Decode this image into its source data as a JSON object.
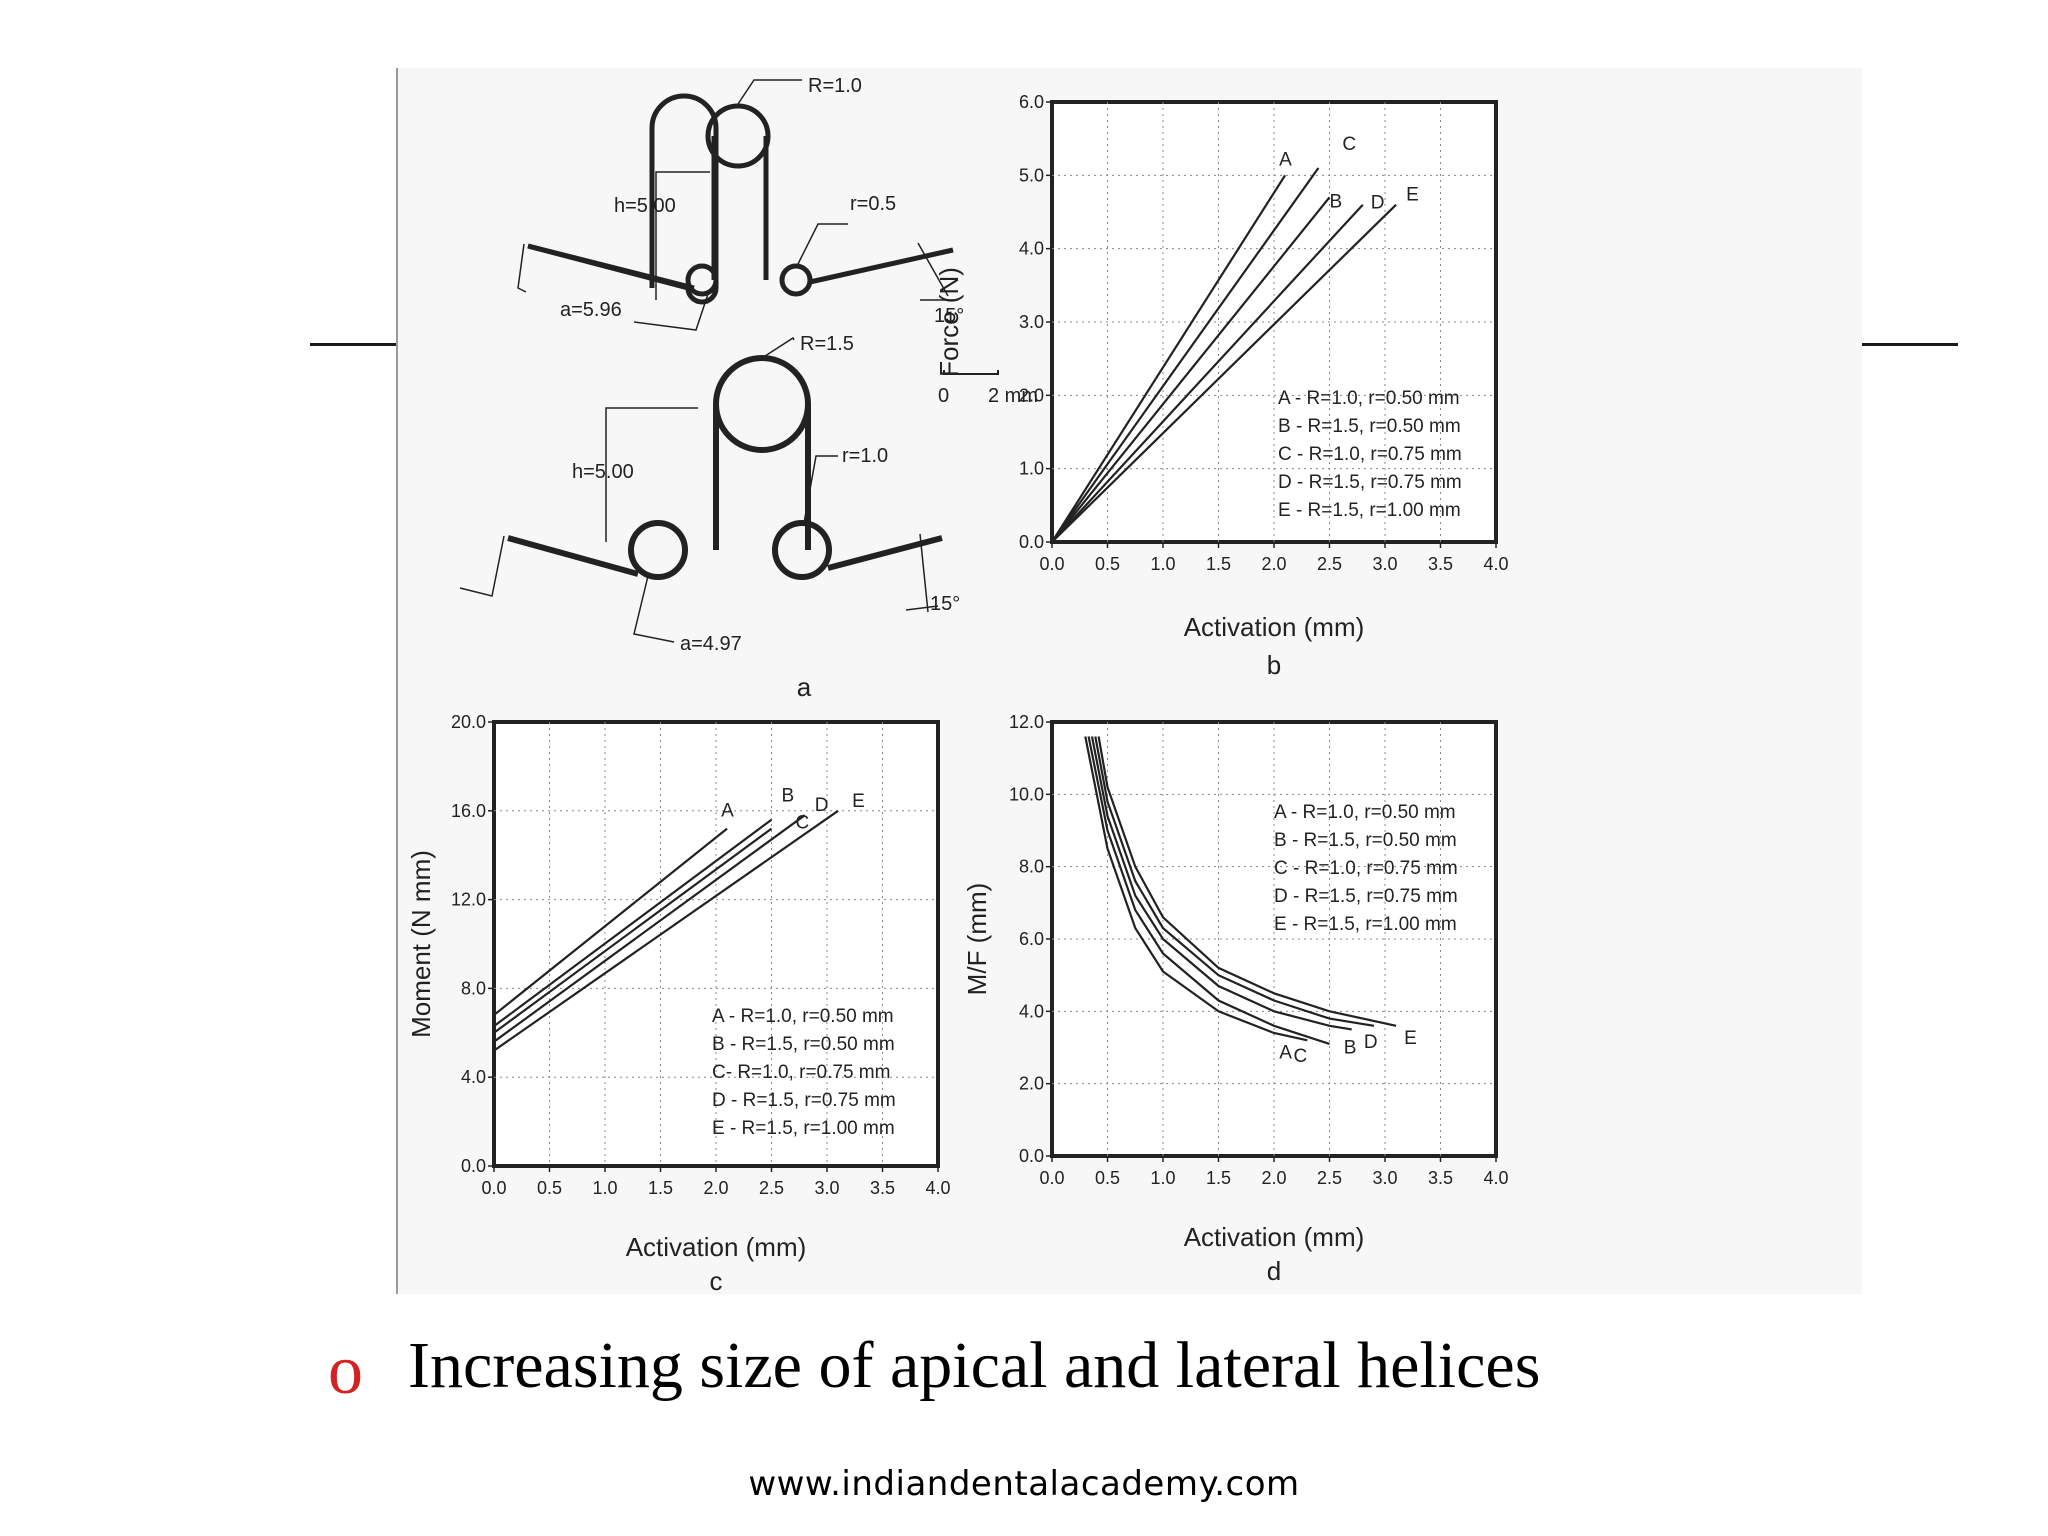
{
  "slide": {
    "caption": "Increasing size of apical and lateral helices",
    "bullet": "o",
    "footer": "www.indiandentalacademy.com"
  },
  "panel_a": {
    "label": "a",
    "top_loop": {
      "R": "R=1.0",
      "r": "r=0.5",
      "h": "h=5.00",
      "a": "a=5.96",
      "angle": "15°"
    },
    "bottom_loop": {
      "R": "R=1.5",
      "r": "r=1.0",
      "h": "h=5.00",
      "a": "a=4.97",
      "angle": "15°"
    },
    "scale_bar": {
      "start": "0",
      "end": "2 mm"
    }
  },
  "chart_data": [
    {
      "panel": "b",
      "type": "line",
      "xlabel": "Activation (mm)",
      "ylabel": "Force (N)",
      "xlim": [
        0,
        4
      ],
      "ylim": [
        0,
        6
      ],
      "xticks": [
        "0.0",
        "0.5",
        "1.0",
        "1.5",
        "2.0",
        "2.5",
        "3.0",
        "3.5",
        "4.0"
      ],
      "yticks": [
        "0.0",
        "1.0",
        "2.0",
        "3.0",
        "4.0",
        "5.0",
        "6.0"
      ],
      "grid": true,
      "legend": [
        "A - R=1.0, r=0.50 mm",
        "B - R=1.5, r=0.50 mm",
        "C - R=1.0, r=0.75 mm",
        "D - R=1.5, r=0.75 mm",
        "E - R=1.5, r=1.00 mm"
      ],
      "legend_position": "bottom-right",
      "series": [
        {
          "name": "A",
          "x": [
            0,
            2.1
          ],
          "y": [
            0,
            5.0
          ]
        },
        {
          "name": "C",
          "x": [
            0,
            2.4
          ],
          "y": [
            0,
            5.1
          ]
        },
        {
          "name": "B",
          "x": [
            0,
            2.5
          ],
          "y": [
            0,
            4.7
          ]
        },
        {
          "name": "D",
          "x": [
            0,
            2.8
          ],
          "y": [
            0,
            4.6
          ]
        },
        {
          "name": "E",
          "x": [
            0,
            3.1
          ],
          "y": [
            0,
            4.6
          ]
        }
      ]
    },
    {
      "panel": "c",
      "type": "line",
      "xlabel": "Activation (mm)",
      "ylabel": "Moment (N mm)",
      "xlim": [
        0,
        4
      ],
      "ylim": [
        0,
        20
      ],
      "xticks": [
        "0.0",
        "0.5",
        "1.0",
        "1.5",
        "2.0",
        "2.5",
        "3.0",
        "3.5",
        "4.0"
      ],
      "yticks": [
        "0.0",
        "4.0",
        "8.0",
        "12.0",
        "16.0",
        "20.0"
      ],
      "grid": true,
      "legend": [
        "A - R=1.0, r=0.50 mm",
        "B - R=1.5, r=0.50 mm",
        "C- R=1.0, r=0.75 mm",
        "D - R=1.5, r=0.75 mm",
        "E - R=1.5, r=1.00 mm"
      ],
      "legend_position": "bottom-right",
      "series": [
        {
          "name": "A",
          "x": [
            0,
            2.1
          ],
          "y": [
            6.8,
            15.2
          ]
        },
        {
          "name": "B",
          "x": [
            0,
            2.5
          ],
          "y": [
            6.3,
            15.6
          ]
        },
        {
          "name": "C",
          "x": [
            0,
            2.5
          ],
          "y": [
            6.0,
            15.2
          ]
        },
        {
          "name": "D",
          "x": [
            0,
            2.8
          ],
          "y": [
            5.6,
            15.8
          ]
        },
        {
          "name": "E",
          "x": [
            0,
            3.1
          ],
          "y": [
            5.2,
            16.0
          ]
        }
      ]
    },
    {
      "panel": "d",
      "type": "line",
      "xlabel": "Activation (mm)",
      "ylabel": "M/F (mm)",
      "xlim": [
        0,
        4
      ],
      "ylim": [
        0,
        12
      ],
      "xticks": [
        "0.0",
        "0.5",
        "1.0",
        "1.5",
        "2.0",
        "2.5",
        "3.0",
        "3.5",
        "4.0"
      ],
      "yticks": [
        "0.0",
        "2.0",
        "4.0",
        "6.0",
        "8.0",
        "10.0",
        "12.0"
      ],
      "grid": true,
      "legend": [
        "A - R=1.0, r=0.50 mm",
        "B - R=1.5, r=0.50 mm",
        "C - R=1.0, r=0.75 mm",
        "D - R=1.5, r=0.75 mm",
        "E - R=1.5, r=1.00 mm"
      ],
      "legend_position": "top-right",
      "series": [
        {
          "name": "A",
          "x": [
            0.3,
            0.5,
            0.75,
            1.0,
            1.5,
            2.0,
            2.3
          ],
          "y": [
            11.6,
            8.5,
            6.3,
            5.1,
            4.0,
            3.4,
            3.2
          ]
        },
        {
          "name": "C",
          "x": [
            0.33,
            0.5,
            0.75,
            1.0,
            1.5,
            2.0,
            2.5
          ],
          "y": [
            11.6,
            9.0,
            6.8,
            5.6,
            4.3,
            3.6,
            3.1
          ]
        },
        {
          "name": "B",
          "x": [
            0.36,
            0.5,
            0.75,
            1.0,
            1.5,
            2.0,
            2.5,
            2.7
          ],
          "y": [
            11.6,
            9.4,
            7.2,
            6.0,
            4.7,
            4.0,
            3.6,
            3.5
          ]
        },
        {
          "name": "D",
          "x": [
            0.39,
            0.5,
            0.75,
            1.0,
            1.5,
            2.0,
            2.5,
            2.9
          ],
          "y": [
            11.6,
            9.8,
            7.6,
            6.3,
            5.0,
            4.3,
            3.8,
            3.6
          ]
        },
        {
          "name": "E",
          "x": [
            0.42,
            0.5,
            0.75,
            1.0,
            1.5,
            2.0,
            2.5,
            3.1
          ],
          "y": [
            11.6,
            10.2,
            8.0,
            6.6,
            5.2,
            4.5,
            4.0,
            3.6
          ]
        }
      ]
    }
  ],
  "panel_labels": {
    "b": "b",
    "c": "c",
    "d": "d"
  }
}
